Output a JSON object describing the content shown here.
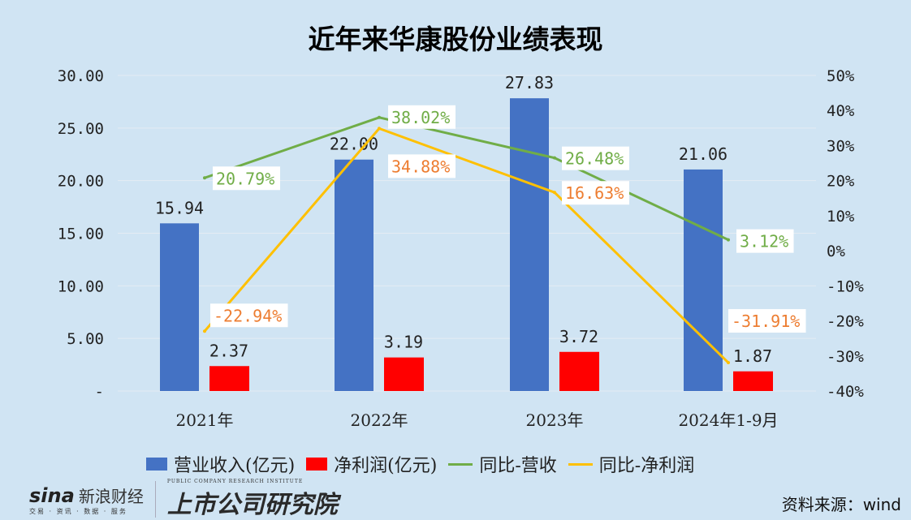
{
  "title": "近年来华康股份业绩表现",
  "chart_data": {
    "type": "bar+line",
    "title": "近年来华康股份业绩表现",
    "categories": [
      "2021年",
      "2022年",
      "2023年",
      "2024年1-9月"
    ],
    "left_axis": {
      "ylim": [
        0,
        30
      ],
      "ticks": [
        "-",
        "5.00",
        "10.00",
        "15.00",
        "20.00",
        "25.00",
        "30.00"
      ]
    },
    "right_axis": {
      "ylim": [
        -40,
        50
      ],
      "ticks": [
        "-40%",
        "-30%",
        "-20%",
        "-10%",
        "0%",
        "10%",
        "20%",
        "30%",
        "40%",
        "50%"
      ]
    },
    "grid": true,
    "legend_placement": "bottom",
    "series": [
      {
        "name": "营业收入(亿元)",
        "type": "bar",
        "axis": "left",
        "color": "#4472c4",
        "values": [
          15.94,
          22.0,
          27.83,
          21.06
        ],
        "labels": [
          "15.94",
          "22.00",
          "27.83",
          "21.06"
        ]
      },
      {
        "name": "净利润(亿元)",
        "type": "bar",
        "axis": "left",
        "color": "#ff0000",
        "values": [
          2.37,
          3.19,
          3.72,
          1.87
        ],
        "labels": [
          "2.37",
          "3.19",
          "3.72",
          "1.87"
        ]
      },
      {
        "name": "同比-营收",
        "type": "line",
        "axis": "right",
        "color": "#70ad47",
        "values": [
          20.79,
          38.02,
          26.48,
          3.12
        ],
        "labels": [
          "20.79%",
          "38.02%",
          "26.48%",
          "3.12%"
        ]
      },
      {
        "name": "同比-净利润",
        "type": "line",
        "axis": "right",
        "color": "#ffc000",
        "label_color": "#ed7d31",
        "values": [
          -22.94,
          34.88,
          16.63,
          -31.91
        ],
        "labels": [
          "-22.94%",
          "34.88%",
          "16.63%",
          "-31.91%"
        ]
      }
    ]
  },
  "source": "资料来源：wind",
  "logo": {
    "sina": "sina",
    "sina_cn": "新浪财经",
    "sina_sub": "交易 · 资讯 · 数据 · 服务",
    "institute": "上市公司研究院",
    "institute_en": "PUBLIC COMPANY RESEARCH INSTITUTE"
  }
}
